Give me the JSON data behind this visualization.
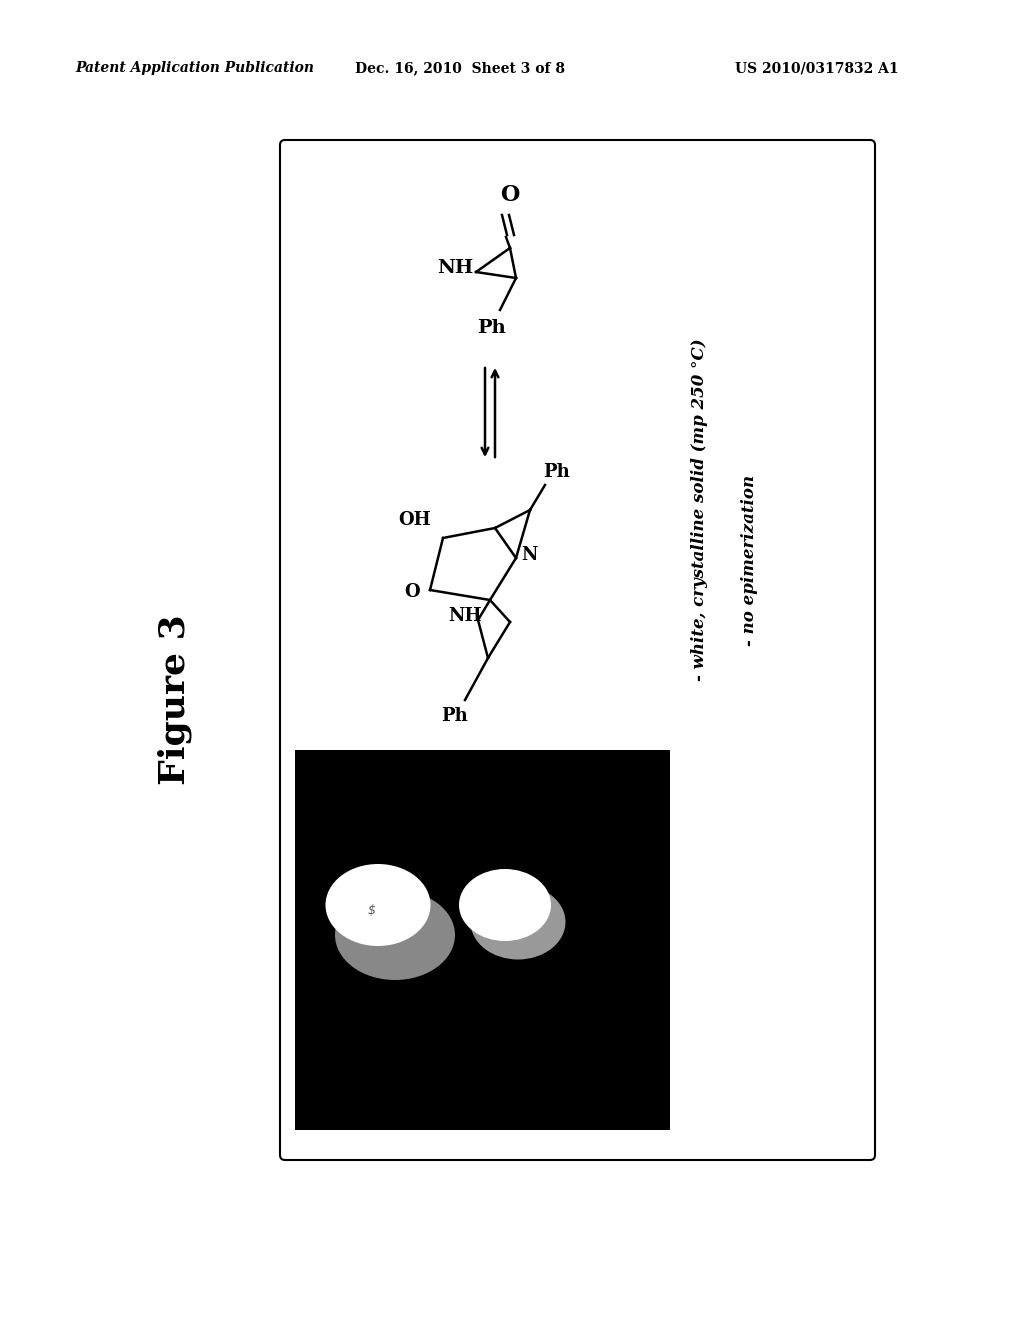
{
  "page_background": "#ffffff",
  "header_left": "Patent Application Publication",
  "header_center": "Dec. 16, 2010  Sheet 3 of 8",
  "header_right": "US 2010/0317832 A1",
  "figure_label": "Figure 3",
  "annotation_line1": "- white, crystalline solid (mp 250 °C)",
  "annotation_line2": "- no epimerization"
}
